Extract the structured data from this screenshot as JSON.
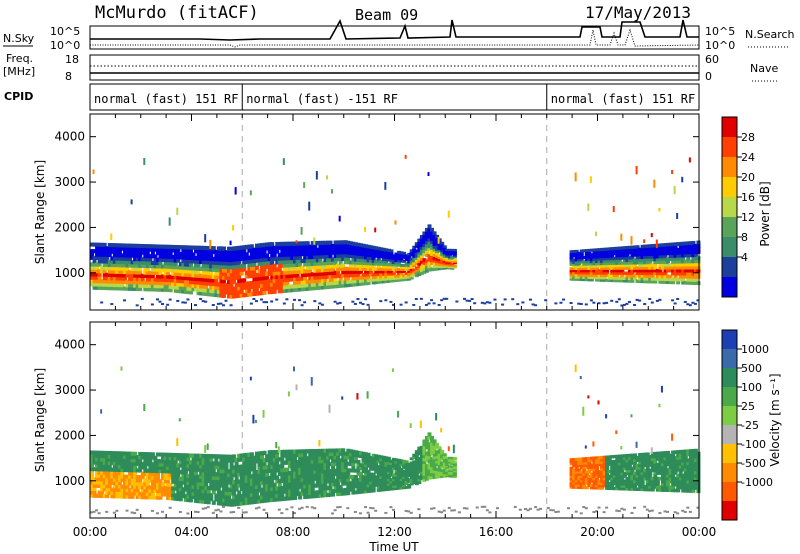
{
  "header": {
    "station": "McMurdo (fitACF)",
    "beam": "Beam 09",
    "date": "17/May/2013"
  },
  "status_panels": {
    "left_labels": {
      "nsky": "N.Sky",
      "freq": "Freq.",
      "freq_unit": "[MHz]",
      "cpid": "CPID"
    },
    "right_labels": {
      "nsearch": "N.Search",
      "nave": "Nave"
    },
    "noise_ticks": [
      "10^5",
      "10^0"
    ],
    "freq_ticks": [
      "18",
      "8"
    ],
    "nave_ticks": [
      "60",
      "0"
    ],
    "cpid_segments": [
      {
        "label": "normal (fast) 151 RF",
        "start_hour": 0
      },
      {
        "label": "normal (fast) -151 RF",
        "start_hour": 6
      },
      {
        "label": "normal (fast) 151 RF",
        "start_hour": 18
      }
    ]
  },
  "chart_data": [
    {
      "type": "heatmap",
      "name": "power",
      "ylabel": "Slant Range [km]",
      "xlabel": "Time UT",
      "x_ticks": [
        "00:00",
        "04:00",
        "08:00",
        "12:00",
        "16:00",
        "20:00",
        "00:00"
      ],
      "x_range_hours": [
        0,
        24
      ],
      "y_ticks": [
        1000,
        2000,
        3000,
        4000
      ],
      "y_range_km": [
        180,
        4500
      ],
      "colorbar_label": "Power [dB]",
      "colorbar_ticks": [
        "28",
        "24",
        "20",
        "16",
        "12",
        "8",
        "4"
      ],
      "colorbar_colors": [
        "#e00000",
        "#ff4000",
        "#ff8c00",
        "#ffcc00",
        "#b8d84a",
        "#5aa45a",
        "#3a8c6a",
        "#1c3f9c",
        "#0000e0"
      ],
      "main_band": [
        {
          "t": 0,
          "lo": 650,
          "hi": 1600
        },
        {
          "t": 3,
          "lo": 600,
          "hi": 1550
        },
        {
          "t": 5.5,
          "lo": 450,
          "hi": 1500
        },
        {
          "t": 7,
          "lo": 550,
          "hi": 1600
        },
        {
          "t": 10,
          "lo": 700,
          "hi": 1650
        },
        {
          "t": 12.5,
          "lo": 850,
          "hi": 1400
        },
        {
          "t": 13.3,
          "lo": 1050,
          "hi": 2000
        },
        {
          "t": 14,
          "lo": 1100,
          "hi": 1500
        },
        {
          "t": 18.8,
          "lo": 850,
          "hi": 1450
        },
        {
          "t": 24,
          "lo": 750,
          "hi": 1650
        }
      ]
    },
    {
      "type": "heatmap",
      "name": "velocity",
      "ylabel": "Slant Range [km]",
      "xlabel": "Time UT",
      "x_ticks": [
        "00:00",
        "04:00",
        "08:00",
        "12:00",
        "16:00",
        "20:00",
        "00:00"
      ],
      "x_range_hours": [
        0,
        24
      ],
      "y_ticks": [
        1000,
        2000,
        3000,
        4000
      ],
      "y_range_km": [
        180,
        4500
      ],
      "colorbar_label": "Velocity [m s⁻¹]",
      "colorbar_ticks": [
        "1000",
        "500",
        "100",
        "25",
        "-25",
        "-100",
        "-500",
        "-1000"
      ],
      "colorbar_colors": [
        "#1c3fb4",
        "#3a6aaa",
        "#2e8c5a",
        "#4aaa4a",
        "#7ccc44",
        "#b4b4b4",
        "#ffc000",
        "#ff8c00",
        "#ff5a00",
        "#e00000"
      ]
    }
  ]
}
